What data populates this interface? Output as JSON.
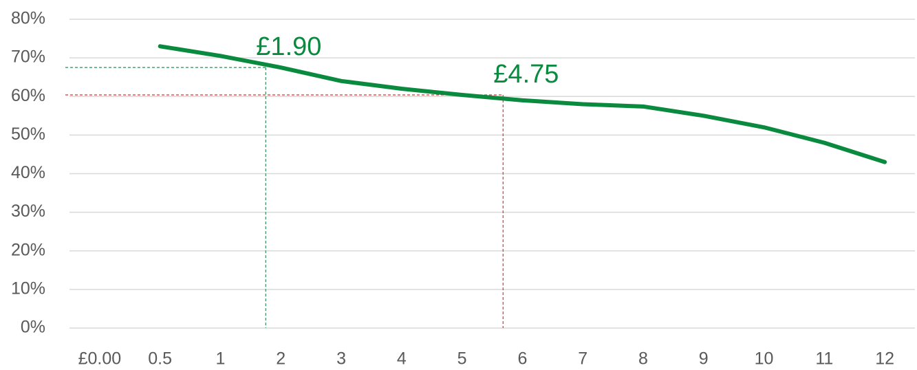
{
  "chart_data": {
    "type": "line",
    "categories": [
      "£0.00",
      "0.5",
      "1",
      "2",
      "3",
      "4",
      "5",
      "6",
      "7",
      "8",
      "9",
      "10",
      "11",
      "12"
    ],
    "series": [
      {
        "color": "#0a8a3f",
        "values": [
          null,
          73,
          70.5,
          67.5,
          64,
          62,
          60.4,
          59,
          58,
          57.4,
          55,
          52,
          48,
          43
        ]
      }
    ],
    "ylim": [
      0,
      80
    ],
    "yticks": [
      {
        "value": 0,
        "label": "0%"
      },
      {
        "value": 10,
        "label": "10%"
      },
      {
        "value": 20,
        "label": "20%"
      },
      {
        "value": 30,
        "label": "30%"
      },
      {
        "value": 40,
        "label": "40%"
      },
      {
        "value": 50,
        "label": "50%"
      },
      {
        "value": 60,
        "label": "60%"
      },
      {
        "value": 70,
        "label": "70%"
      },
      {
        "value": 80,
        "label": "80%"
      }
    ],
    "grid": true,
    "annotations": [
      {
        "text": "£1.90",
        "x": 2.75,
        "y": 67.5,
        "color": "#2e8b57"
      },
      {
        "text": "£4.75",
        "x": 6.68,
        "y": 60.4,
        "color": "#e03030"
      }
    ]
  }
}
